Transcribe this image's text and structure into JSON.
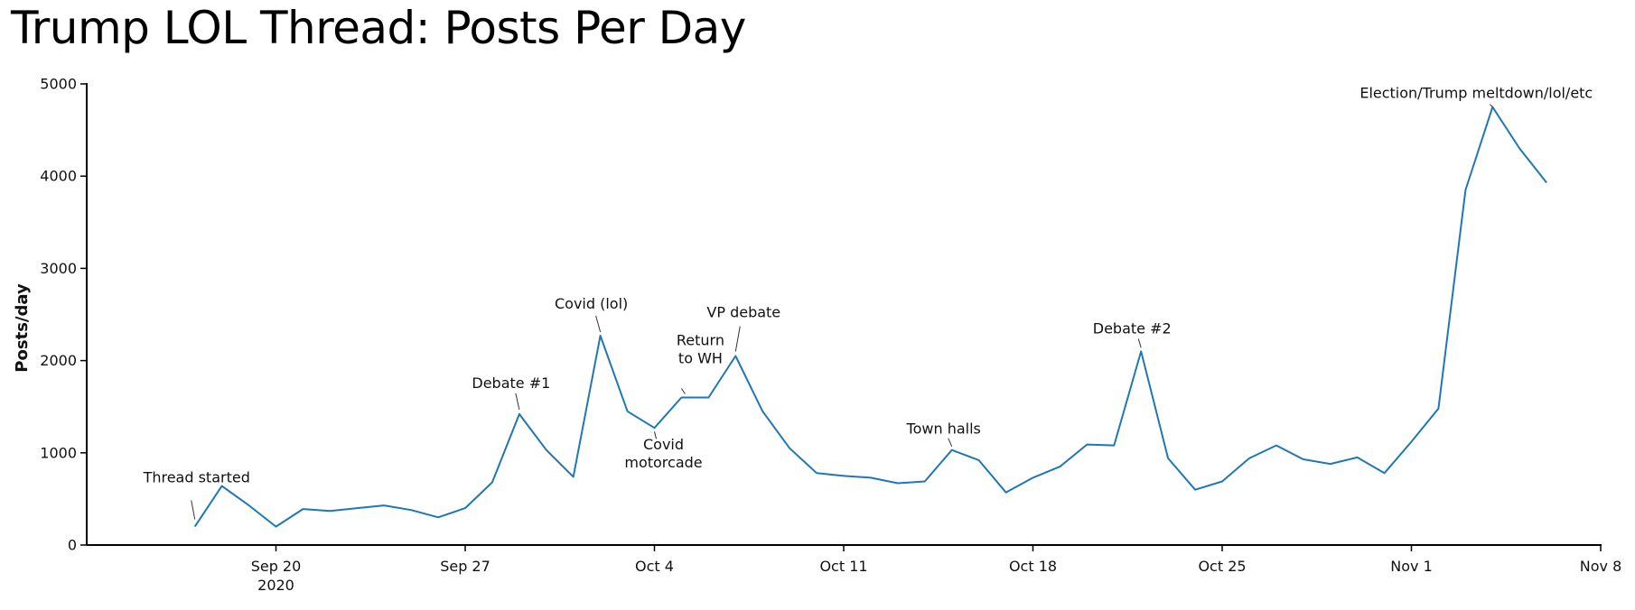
{
  "chart_data": {
    "type": "line",
    "title": "Trump LOL Thread: Posts Per Day",
    "ylabel": "Posts/day",
    "xlabel": "",
    "ylim": [
      0,
      5000
    ],
    "yticks": [
      0,
      1000,
      2000,
      3000,
      4000,
      5000
    ],
    "xlim": [
      "2020-09-13",
      "2020-11-08"
    ],
    "xticks": [
      {
        "date": "2020-09-20",
        "label": "Sep 20",
        "sublabel": "2020"
      },
      {
        "date": "2020-09-27",
        "label": "Sep 27",
        "sublabel": ""
      },
      {
        "date": "2020-10-04",
        "label": "Oct 4",
        "sublabel": ""
      },
      {
        "date": "2020-10-11",
        "label": "Oct 11",
        "sublabel": ""
      },
      {
        "date": "2020-10-18",
        "label": "Oct 18",
        "sublabel": ""
      },
      {
        "date": "2020-10-25",
        "label": "Oct 25",
        "sublabel": ""
      },
      {
        "date": "2020-11-01",
        "label": "Nov 1",
        "sublabel": ""
      },
      {
        "date": "2020-11-08",
        "label": "Nov 8",
        "sublabel": ""
      }
    ],
    "grid": false,
    "line_color": "#1f77b4",
    "series": [
      {
        "name": "",
        "x": [
          "2020-09-17",
          "2020-09-18",
          "2020-09-19",
          "2020-09-20",
          "2020-09-21",
          "2020-09-22",
          "2020-09-23",
          "2020-09-24",
          "2020-09-25",
          "2020-09-26",
          "2020-09-27",
          "2020-09-28",
          "2020-09-29",
          "2020-09-30",
          "2020-10-01",
          "2020-10-02",
          "2020-10-03",
          "2020-10-04",
          "2020-10-05",
          "2020-10-06",
          "2020-10-07",
          "2020-10-08",
          "2020-10-09",
          "2020-10-10",
          "2020-10-11",
          "2020-10-12",
          "2020-10-13",
          "2020-10-14",
          "2020-10-15",
          "2020-10-16",
          "2020-10-17",
          "2020-10-18",
          "2020-10-19",
          "2020-10-20",
          "2020-10-21",
          "2020-10-22",
          "2020-10-23",
          "2020-10-24",
          "2020-10-25",
          "2020-10-26",
          "2020-10-27",
          "2020-10-28",
          "2020-10-29",
          "2020-10-30",
          "2020-10-31",
          "2020-11-01",
          "2020-11-02",
          "2020-11-03",
          "2020-11-04",
          "2020-11-05",
          "2020-11-06"
        ],
        "y": [
          200,
          640,
          430,
          200,
          390,
          370,
          400,
          430,
          380,
          300,
          400,
          680,
          1420,
          1030,
          740,
          2270,
          1450,
          1270,
          1600,
          1600,
          2050,
          1450,
          1050,
          780,
          750,
          730,
          670,
          690,
          1030,
          920,
          570,
          730,
          850,
          1090,
          1080,
          2100,
          940,
          600,
          690,
          940,
          1080,
          930,
          880,
          950,
          780,
          1120,
          1480,
          3850,
          4750,
          4300,
          3930
        ]
      }
    ],
    "annotations": [
      {
        "text": [
          "Thread started"
        ],
        "date": "2020-09-17",
        "value": 200
      },
      {
        "text": [
          "Debate #1"
        ],
        "date": "2020-09-29",
        "value": 1420
      },
      {
        "text": [
          "Covid (lol)"
        ],
        "date": "2020-10-02",
        "value": 2270
      },
      {
        "text": [
          "Covid",
          "motorcade"
        ],
        "date": "2020-10-04",
        "value": 1270
      },
      {
        "text": [
          "Return",
          "to WH"
        ],
        "date": "2020-10-05",
        "value": 1600
      },
      {
        "text": [
          "VP debate"
        ],
        "date": "2020-10-07",
        "value": 2050
      },
      {
        "text": [
          "Town halls"
        ],
        "date": "2020-10-15",
        "value": 1030
      },
      {
        "text": [
          "Debate #2"
        ],
        "date": "2020-10-22",
        "value": 2100
      },
      {
        "text": [
          "Election/Trump meltdown/lol/etc"
        ],
        "date": "2020-11-04",
        "value": 4750
      }
    ]
  }
}
